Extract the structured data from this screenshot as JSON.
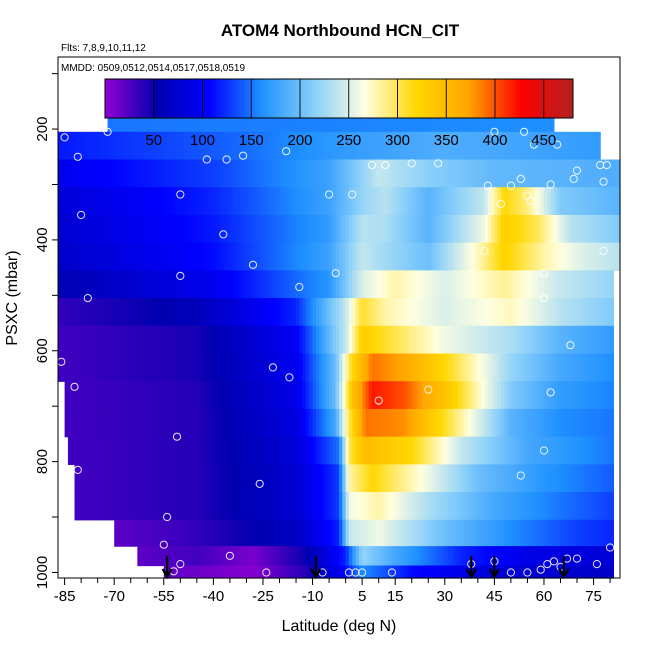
{
  "chart_data": {
    "type": "heatmap",
    "title": "ATOM4 Northbound HCN_CIT",
    "annotations": [
      "Flts: 7,8,9,10,11,12",
      "MMDD: 0509,0512,0514,0517,0518,0519"
    ],
    "xlabel": "Latitude (deg N)",
    "ylabel": "PSXC (mbar)",
    "xlim": [
      -87,
      83
    ],
    "ylim": [
      1010,
      70
    ],
    "x_ticks": [
      -85,
      -70,
      -55,
      -40,
      -25,
      -10,
      5,
      15,
      30,
      45,
      60,
      75
    ],
    "y_ticks": [
      200,
      400,
      600,
      800,
      1000
    ],
    "colorbar": {
      "ticks": [
        50,
        100,
        150,
        200,
        250,
        300,
        350,
        400,
        450
      ],
      "range": [
        0,
        480
      ],
      "colors": [
        "#9400d3",
        "#0000b0",
        "#0000ff",
        "#1e90ff",
        "#87cefa",
        "#ffffe0",
        "#ffd700",
        "#ffa500",
        "#ff0000",
        "#b22222"
      ]
    },
    "profile_latitudes": [
      -54,
      -9,
      38,
      45,
      66
    ],
    "layers": [
      {
        "p": 180,
        "lat_min": -72,
        "lat_max": 63,
        "nodes": [
          [
            -72,
            150
          ],
          [
            63,
            160
          ]
        ]
      },
      {
        "p": 230,
        "lat_min": -87,
        "lat_max": 77,
        "nodes": [
          [
            -87,
            115
          ],
          [
            -40,
            140
          ],
          [
            0,
            170
          ],
          [
            30,
            185
          ],
          [
            77,
            170
          ]
        ]
      },
      {
        "p": 280,
        "lat_min": -87,
        "lat_max": 83,
        "nodes": [
          [
            -87,
            95
          ],
          [
            -40,
            130
          ],
          [
            -5,
            175
          ],
          [
            10,
            240
          ],
          [
            25,
            215
          ],
          [
            45,
            195
          ],
          [
            83,
            185
          ]
        ]
      },
      {
        "p": 330,
        "lat_min": -87,
        "lat_max": 83,
        "nodes": [
          [
            -87,
            80
          ],
          [
            -40,
            120
          ],
          [
            -5,
            175
          ],
          [
            5,
            220
          ],
          [
            12,
            235
          ],
          [
            25,
            190
          ],
          [
            42,
            240
          ],
          [
            48,
            320
          ],
          [
            55,
            290
          ],
          [
            65,
            210
          ],
          [
            83,
            190
          ]
        ]
      },
      {
        "p": 380,
        "lat_min": -87,
        "lat_max": 83,
        "nodes": [
          [
            -87,
            75
          ],
          [
            -40,
            115
          ],
          [
            -5,
            170
          ],
          [
            5,
            235
          ],
          [
            12,
            230
          ],
          [
            25,
            190
          ],
          [
            42,
            260
          ],
          [
            48,
            330
          ],
          [
            58,
            300
          ],
          [
            68,
            235
          ],
          [
            83,
            210
          ]
        ]
      },
      {
        "p": 430,
        "lat_min": -87,
        "lat_max": 83,
        "nodes": [
          [
            -87,
            70
          ],
          [
            -40,
            110
          ],
          [
            -5,
            175
          ],
          [
            5,
            240
          ],
          [
            12,
            225
          ],
          [
            25,
            200
          ],
          [
            40,
            275
          ],
          [
            48,
            325
          ],
          [
            60,
            280
          ],
          [
            72,
            250
          ],
          [
            83,
            235
          ]
        ]
      },
      {
        "p": 480,
        "lat_min": -87,
        "lat_max": 81,
        "nodes": [
          [
            -87,
            55
          ],
          [
            -40,
            95
          ],
          [
            -5,
            165
          ],
          [
            5,
            250
          ],
          [
            15,
            280
          ],
          [
            30,
            250
          ],
          [
            48,
            285
          ],
          [
            65,
            240
          ],
          [
            81,
            220
          ]
        ]
      },
      {
        "p": 530,
        "lat_min": -87,
        "lat_max": 81,
        "nodes": [
          [
            -87,
            35
          ],
          [
            -45,
            60
          ],
          [
            -15,
            120
          ],
          [
            0,
            240
          ],
          [
            5,
            310
          ],
          [
            12,
            280
          ],
          [
            30,
            250
          ],
          [
            50,
            275
          ],
          [
            65,
            235
          ],
          [
            81,
            210
          ]
        ]
      },
      {
        "p": 580,
        "lat_min": -87,
        "lat_max": 81,
        "nodes": [
          [
            -87,
            30
          ],
          [
            -45,
            45
          ],
          [
            -15,
            100
          ],
          [
            0,
            240
          ],
          [
            5,
            330
          ],
          [
            12,
            310
          ],
          [
            30,
            260
          ],
          [
            50,
            230
          ],
          [
            65,
            190
          ],
          [
            81,
            170
          ]
        ]
      },
      {
        "p": 630,
        "lat_min": -87,
        "lat_max": 81,
        "nodes": [
          [
            -87,
            30
          ],
          [
            -45,
            45
          ],
          [
            -15,
            95
          ],
          [
            -3,
            200
          ],
          [
            2,
            320
          ],
          [
            8,
            390
          ],
          [
            18,
            370
          ],
          [
            32,
            310
          ],
          [
            50,
            220
          ],
          [
            65,
            180
          ],
          [
            81,
            160
          ]
        ]
      },
      {
        "p": 680,
        "lat_min": -85,
        "lat_max": 81,
        "nodes": [
          [
            -85,
            30
          ],
          [
            -45,
            40
          ],
          [
            -15,
            90
          ],
          [
            -3,
            200
          ],
          [
            2,
            340
          ],
          [
            8,
            420
          ],
          [
            18,
            400
          ],
          [
            32,
            330
          ],
          [
            50,
            210
          ],
          [
            65,
            170
          ],
          [
            81,
            155
          ]
        ]
      },
      {
        "p": 730,
        "lat_min": -85,
        "lat_max": 81,
        "nodes": [
          [
            -85,
            30
          ],
          [
            -45,
            40
          ],
          [
            -15,
            85
          ],
          [
            -3,
            180
          ],
          [
            1,
            300
          ],
          [
            6,
            390
          ],
          [
            18,
            380
          ],
          [
            32,
            300
          ],
          [
            50,
            190
          ],
          [
            65,
            160
          ],
          [
            81,
            150
          ]
        ]
      },
      {
        "p": 780,
        "lat_min": -84,
        "lat_max": 81,
        "nodes": [
          [
            -84,
            30
          ],
          [
            -45,
            40
          ],
          [
            -15,
            80
          ],
          [
            -2,
            150
          ],
          [
            1,
            300
          ],
          [
            6,
            350
          ],
          [
            20,
            320
          ],
          [
            35,
            240
          ],
          [
            55,
            180
          ],
          [
            81,
            150
          ]
        ]
      },
      {
        "p": 830,
        "lat_min": -82,
        "lat_max": 81,
        "nodes": [
          [
            -82,
            30
          ],
          [
            -45,
            40
          ],
          [
            -15,
            75
          ],
          [
            -2,
            130
          ],
          [
            1,
            280
          ],
          [
            8,
            320
          ],
          [
            22,
            270
          ],
          [
            40,
            200
          ],
          [
            60,
            165
          ],
          [
            81,
            140
          ]
        ]
      },
      {
        "p": 880,
        "lat_min": -82,
        "lat_max": 81,
        "nodes": [
          [
            -82,
            30
          ],
          [
            -45,
            40
          ],
          [
            -15,
            75
          ],
          [
            -2,
            130
          ],
          [
            1,
            260
          ],
          [
            10,
            280
          ],
          [
            25,
            230
          ],
          [
            45,
            180
          ],
          [
            65,
            150
          ],
          [
            81,
            130
          ]
        ]
      },
      {
        "p": 930,
        "lat_min": -70,
        "lat_max": 81,
        "nodes": [
          [
            -70,
            20
          ],
          [
            -45,
            35
          ],
          [
            -15,
            65
          ],
          [
            -2,
            120
          ],
          [
            1,
            240
          ],
          [
            10,
            260
          ],
          [
            30,
            200
          ],
          [
            50,
            160
          ],
          [
            70,
            130
          ],
          [
            81,
            120
          ]
        ]
      },
      {
        "p": 975,
        "lat_min": -63,
        "lat_max": 81,
        "nodes": [
          [
            -63,
            20
          ],
          [
            -45,
            30
          ],
          [
            -28,
            10
          ],
          [
            -12,
            50
          ],
          [
            0,
            120
          ],
          [
            5,
            220
          ],
          [
            15,
            180
          ],
          [
            35,
            120
          ],
          [
            55,
            90
          ],
          [
            81,
            80
          ]
        ]
      },
      {
        "p": 1000,
        "lat_min": -55,
        "lat_max": 81,
        "nodes": [
          [
            -55,
            20
          ],
          [
            -28,
            5
          ],
          [
            -12,
            40
          ],
          [
            0,
            110
          ],
          [
            5,
            160
          ],
          [
            20,
            110
          ],
          [
            45,
            80
          ],
          [
            81,
            70
          ]
        ]
      }
    ],
    "samples": [
      [
        -85,
        215
      ],
      [
        -72,
        205
      ],
      [
        -81,
        250
      ],
      [
        -80,
        355
      ],
      [
        -50,
        318
      ],
      [
        -42,
        255
      ],
      [
        -36,
        255
      ],
      [
        -31,
        248
      ],
      [
        -18,
        240
      ],
      [
        -37,
        390
      ],
      [
        -28,
        445
      ],
      [
        -50,
        465
      ],
      [
        -78,
        505
      ],
      [
        -14,
        485
      ],
      [
        -3,
        460
      ],
      [
        -86,
        620
      ],
      [
        -82,
        665
      ],
      [
        -22,
        630
      ],
      [
        -17,
        648
      ],
      [
        -51,
        755
      ],
      [
        -81,
        815
      ],
      [
        -26,
        840
      ],
      [
        -54,
        900
      ],
      [
        -55,
        950
      ],
      [
        -52,
        998
      ],
      [
        -50,
        985
      ],
      [
        -35,
        970
      ],
      [
        -24,
        1000
      ],
      [
        -7,
        1000
      ],
      [
        -5,
        318
      ],
      [
        2,
        318
      ],
      [
        8,
        265
      ],
      [
        12,
        265
      ],
      [
        20,
        262
      ],
      [
        28,
        262
      ],
      [
        45,
        205
      ],
      [
        54,
        205
      ],
      [
        57,
        228
      ],
      [
        64,
        228
      ],
      [
        70,
        275
      ],
      [
        77,
        265
      ],
      [
        79,
        265
      ],
      [
        43,
        302
      ],
      [
        50,
        302
      ],
      [
        53,
        290
      ],
      [
        55,
        320
      ],
      [
        62,
        300
      ],
      [
        69,
        290
      ],
      [
        78,
        295
      ],
      [
        47,
        335
      ],
      [
        56,
        330
      ],
      [
        42,
        420
      ],
      [
        60,
        460
      ],
      [
        78,
        420
      ],
      [
        60,
        505
      ],
      [
        68,
        590
      ],
      [
        25,
        670
      ],
      [
        62,
        675
      ],
      [
        60,
        780
      ],
      [
        53,
        825
      ],
      [
        80,
        955
      ],
      [
        76,
        985
      ],
      [
        1,
        1000
      ],
      [
        3,
        1000
      ],
      [
        5,
        1000
      ],
      [
        14,
        1000
      ],
      [
        38,
        985
      ],
      [
        45,
        980
      ],
      [
        50,
        1000
      ],
      [
        55,
        1000
      ],
      [
        59,
        995
      ],
      [
        61,
        985
      ],
      [
        63,
        980
      ],
      [
        65,
        990
      ],
      [
        67,
        975
      ],
      [
        70,
        975
      ],
      [
        10,
        690
      ]
    ]
  }
}
